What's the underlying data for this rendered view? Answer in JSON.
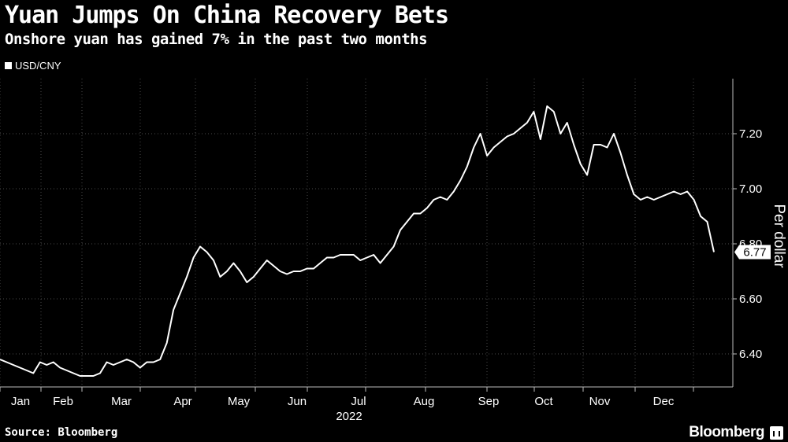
{
  "chart_data": {
    "type": "line",
    "title": "Yuan Jumps On China Recovery Bets",
    "subtitle": "Onshore yuan has gained 7% in the past two months",
    "legend": [
      "USD/CNY"
    ],
    "legend_placement": "top-left",
    "ylabel": "Per dollar",
    "xlabel": "2022",
    "source": "Source: Bloomberg",
    "brand": "Bloomberg",
    "ylim": [
      6.28,
      7.4
    ],
    "yticks": [
      6.4,
      6.6,
      6.8,
      7.0,
      7.2
    ],
    "ytick_labels": [
      "6.40",
      "6.60",
      "6.80",
      "7.00",
      "7.20"
    ],
    "xticks": [
      "Jan",
      "Feb",
      "Mar",
      "Apr",
      "May",
      "Jun",
      "Jul",
      "Aug",
      "Sep",
      "Oct",
      "Nov",
      "Dec"
    ],
    "grid": true,
    "last_value_label": "6.77",
    "series": [
      {
        "values": [
          [
            0,
            6.38
          ],
          [
            5,
            6.37
          ],
          [
            10,
            6.36
          ],
          [
            15,
            6.35
          ],
          [
            20,
            6.34
          ],
          [
            25,
            6.33
          ],
          [
            30,
            6.37
          ],
          [
            35,
            6.36
          ],
          [
            40,
            6.37
          ],
          [
            45,
            6.35
          ],
          [
            50,
            6.34
          ],
          [
            55,
            6.33
          ],
          [
            60,
            6.32
          ],
          [
            65,
            6.32
          ],
          [
            70,
            6.32
          ],
          [
            75,
            6.33
          ],
          [
            80,
            6.37
          ],
          [
            85,
            6.36
          ],
          [
            90,
            6.37
          ],
          [
            95,
            6.38
          ],
          [
            100,
            6.37
          ],
          [
            105,
            6.35
          ],
          [
            110,
            6.37
          ],
          [
            115,
            6.37
          ],
          [
            120,
            6.38
          ],
          [
            125,
            6.44
          ],
          [
            130,
            6.56
          ],
          [
            135,
            6.62
          ],
          [
            140,
            6.68
          ],
          [
            145,
            6.75
          ],
          [
            150,
            6.79
          ],
          [
            155,
            6.77
          ],
          [
            160,
            6.74
          ],
          [
            165,
            6.68
          ],
          [
            170,
            6.7
          ],
          [
            175,
            6.73
          ],
          [
            180,
            6.7
          ],
          [
            185,
            6.66
          ],
          [
            190,
            6.68
          ],
          [
            195,
            6.71
          ],
          [
            200,
            6.74
          ],
          [
            205,
            6.72
          ],
          [
            210,
            6.7
          ],
          [
            215,
            6.69
          ],
          [
            220,
            6.7
          ],
          [
            225,
            6.7
          ],
          [
            230,
            6.71
          ],
          [
            235,
            6.71
          ],
          [
            240,
            6.73
          ],
          [
            245,
            6.75
          ],
          [
            250,
            6.75
          ],
          [
            255,
            6.76
          ],
          [
            260,
            6.76
          ],
          [
            265,
            6.76
          ],
          [
            270,
            6.74
          ],
          [
            275,
            6.75
          ],
          [
            280,
            6.76
          ],
          [
            285,
            6.73
          ],
          [
            290,
            6.76
          ],
          [
            295,
            6.79
          ],
          [
            300,
            6.85
          ],
          [
            305,
            6.88
          ],
          [
            310,
            6.91
          ],
          [
            315,
            6.91
          ],
          [
            320,
            6.93
          ],
          [
            325,
            6.96
          ],
          [
            330,
            6.97
          ],
          [
            335,
            6.96
          ],
          [
            340,
            6.99
          ],
          [
            345,
            7.03
          ],
          [
            350,
            7.08
          ],
          [
            355,
            7.15
          ],
          [
            360,
            7.2
          ],
          [
            365,
            7.12
          ],
          [
            370,
            7.15
          ],
          [
            375,
            7.17
          ],
          [
            380,
            7.19
          ],
          [
            385,
            7.2
          ],
          [
            390,
            7.22
          ],
          [
            395,
            7.24
          ],
          [
            400,
            7.28
          ],
          [
            405,
            7.18
          ],
          [
            410,
            7.3
          ],
          [
            415,
            7.28
          ],
          [
            420,
            7.2
          ],
          [
            425,
            7.24
          ],
          [
            430,
            7.16
          ],
          [
            435,
            7.09
          ],
          [
            440,
            7.05
          ],
          [
            445,
            7.16
          ],
          [
            450,
            7.16
          ],
          [
            455,
            7.15
          ],
          [
            460,
            7.2
          ],
          [
            465,
            7.13
          ],
          [
            470,
            7.05
          ],
          [
            475,
            6.98
          ],
          [
            480,
            6.96
          ],
          [
            485,
            6.97
          ],
          [
            490,
            6.96
          ],
          [
            495,
            6.97
          ],
          [
            500,
            6.98
          ],
          [
            505,
            6.99
          ],
          [
            510,
            6.98
          ],
          [
            515,
            6.99
          ],
          [
            520,
            6.96
          ],
          [
            525,
            6.9
          ],
          [
            530,
            6.88
          ],
          [
            535,
            6.77
          ]
        ]
      }
    ]
  }
}
